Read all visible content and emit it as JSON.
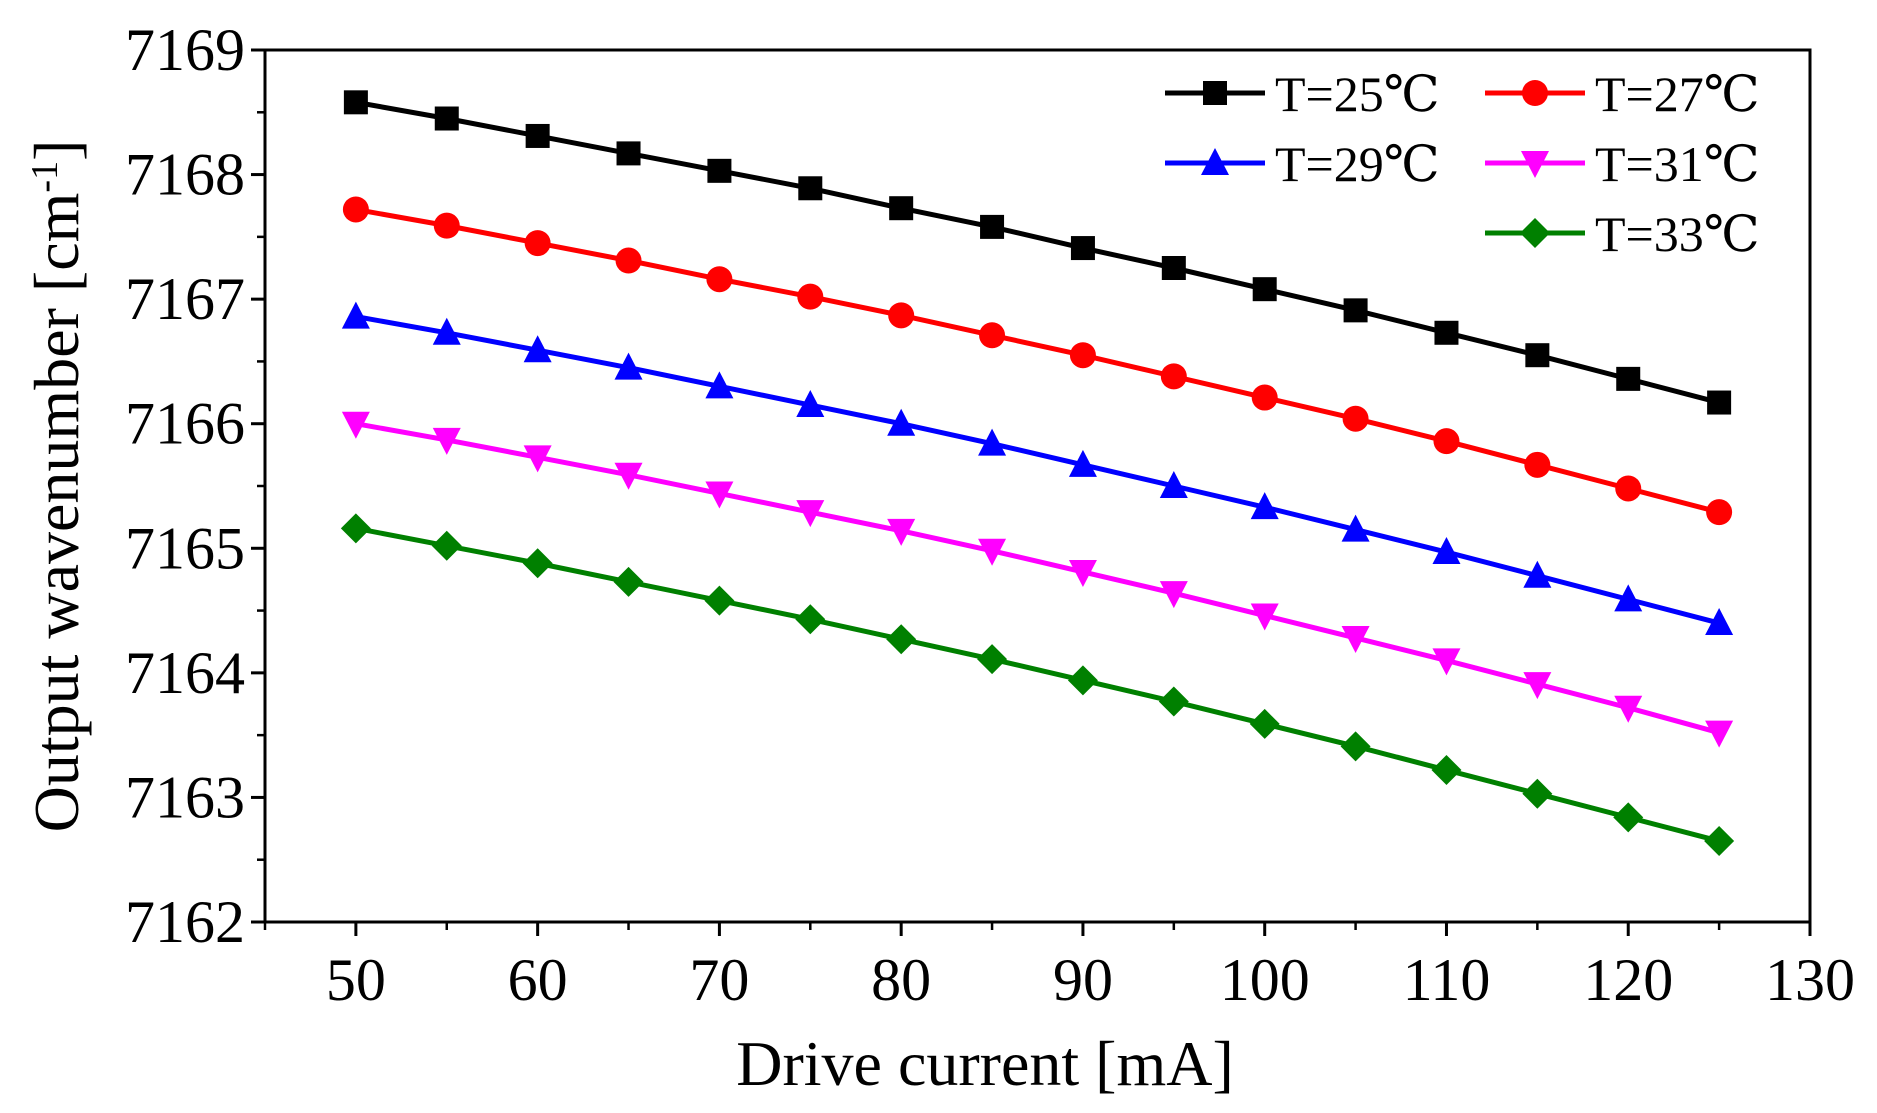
{
  "chart_data": {
    "type": "line",
    "title": "",
    "xlabel": "Drive current [mA]",
    "ylabel_main": "Output wavenumber [cm",
    "ylabel_sup": "-1",
    "ylabel_close": "]",
    "xlim": [
      45,
      130
    ],
    "ylim": [
      7162,
      7169
    ],
    "xticks": [
      50,
      60,
      70,
      80,
      90,
      100,
      110,
      120,
      130
    ],
    "yticks": [
      7162,
      7163,
      7164,
      7165,
      7166,
      7167,
      7168,
      7169
    ],
    "legend_position": "top-right",
    "x": [
      50,
      55,
      60,
      65,
      70,
      75,
      80,
      85,
      90,
      95,
      100,
      105,
      110,
      115,
      120,
      125
    ],
    "series": [
      {
        "name": "T=25℃",
        "color": "#000000",
        "marker": "square",
        "values": [
          7168.58,
          7168.45,
          7168.31,
          7168.17,
          7168.03,
          7167.89,
          7167.73,
          7167.58,
          7167.41,
          7167.25,
          7167.08,
          7166.91,
          7166.73,
          7166.55,
          7166.36,
          7166.17
        ]
      },
      {
        "name": "T=27℃",
        "color": "#ff0000",
        "marker": "circle",
        "values": [
          7167.72,
          7167.59,
          7167.45,
          7167.31,
          7167.16,
          7167.02,
          7166.87,
          7166.71,
          7166.55,
          7166.38,
          7166.21,
          7166.04,
          7165.86,
          7165.67,
          7165.48,
          7165.29
        ]
      },
      {
        "name": "T=29℃",
        "color": "#0000ff",
        "marker": "triangle-up",
        "values": [
          7166.86,
          7166.73,
          7166.59,
          7166.45,
          7166.3,
          7166.15,
          7166.0,
          7165.84,
          7165.67,
          7165.5,
          7165.33,
          7165.15,
          7164.97,
          7164.78,
          7164.59,
          7164.4
        ]
      },
      {
        "name": "T=31℃",
        "color": "#ff00ff",
        "marker": "triangle-down",
        "values": [
          7166.0,
          7165.87,
          7165.73,
          7165.59,
          7165.44,
          7165.29,
          7165.14,
          7164.98,
          7164.81,
          7164.64,
          7164.46,
          7164.28,
          7164.1,
          7163.91,
          7163.72,
          7163.52
        ]
      },
      {
        "name": "T=33℃",
        "color": "#008000",
        "marker": "diamond",
        "values": [
          7165.16,
          7165.02,
          7164.88,
          7164.73,
          7164.58,
          7164.43,
          7164.27,
          7164.11,
          7163.94,
          7163.77,
          7163.59,
          7163.41,
          7163.22,
          7163.03,
          7162.84,
          7162.65
        ]
      }
    ]
  }
}
